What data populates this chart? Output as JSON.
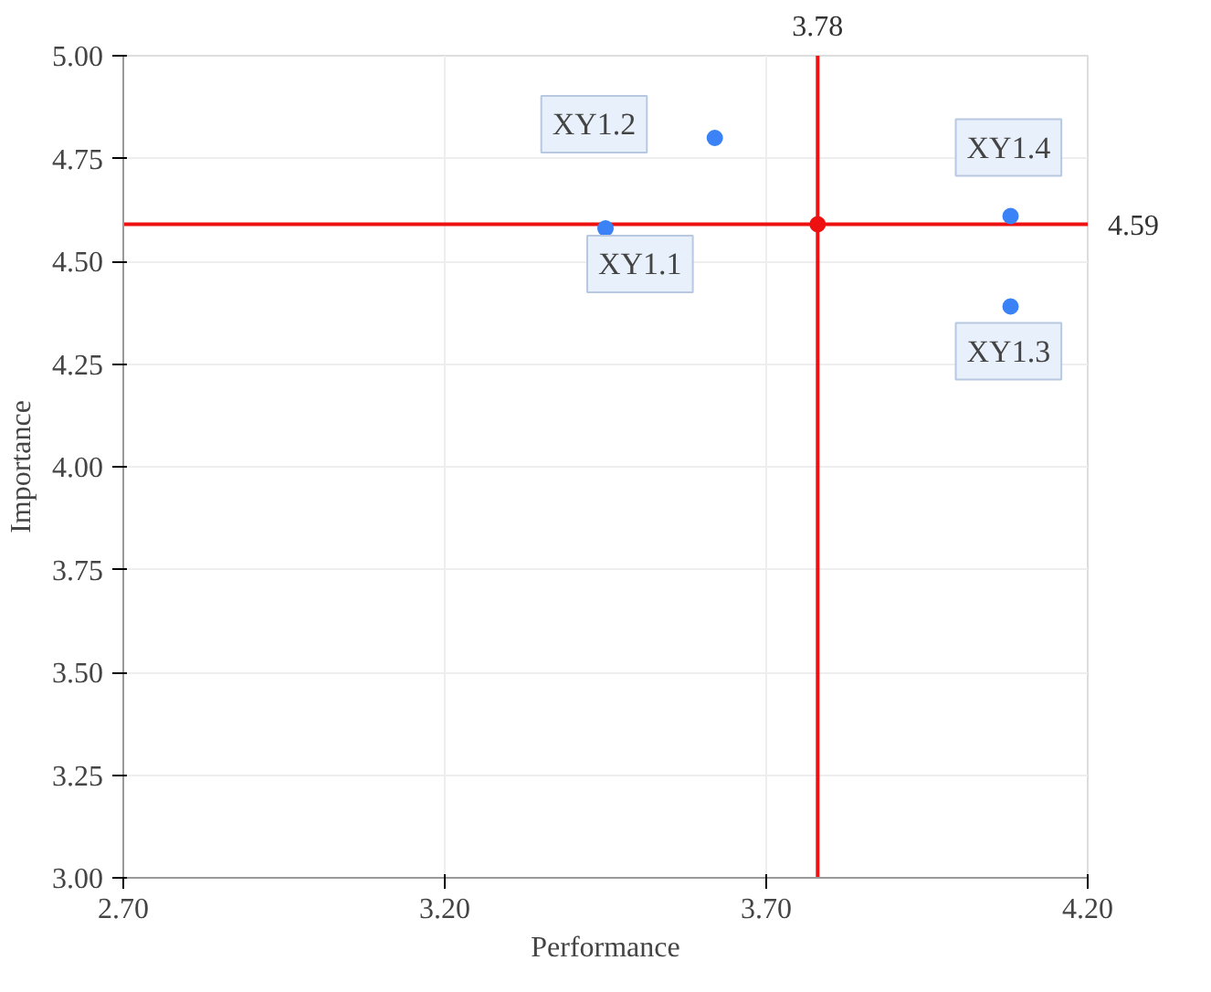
{
  "chart_data": {
    "type": "scatter",
    "xlabel": "Performance",
    "ylabel": "Importance",
    "xlim": [
      2.7,
      4.2
    ],
    "xticks": [
      {
        "value": 2.7,
        "label": "2.70"
      },
      {
        "value": 3.2,
        "label": "3.20"
      },
      {
        "value": 3.7,
        "label": "3.70"
      },
      {
        "value": 4.2,
        "label": "4.20"
      }
    ],
    "ylim": [
      3.0,
      5.0
    ],
    "yticks": [
      {
        "value": 3.0,
        "label": "3.00"
      },
      {
        "value": 3.25,
        "label": "3.25"
      },
      {
        "value": 3.5,
        "label": "3.50"
      },
      {
        "value": 3.75,
        "label": "3.75"
      },
      {
        "value": 4.0,
        "label": "4.00"
      },
      {
        "value": 4.25,
        "label": "4.25"
      },
      {
        "value": 4.5,
        "label": "4.50"
      },
      {
        "value": 4.75,
        "label": "4.75"
      },
      {
        "value": 5.0,
        "label": "5.00"
      }
    ],
    "grid": true,
    "marker": "circle",
    "series": [
      {
        "color": "#3b82f6",
        "x": [
          3.45,
          3.62,
          4.08,
          4.08
        ],
        "values": [
          4.58,
          4.8,
          4.39,
          4.61
        ]
      },
      {
        "color": "#ee1111",
        "x": [
          3.78
        ],
        "values": [
          4.59
        ]
      }
    ],
    "ref_lines": [
      {
        "axis": "x",
        "value": 3.78,
        "label": "3.78",
        "color": "#ee1111"
      },
      {
        "axis": "y",
        "value": 4.59,
        "label": "4.59",
        "color": "#ee1111"
      }
    ],
    "annotations": [
      {
        "text": "XY1.1",
        "x": 3.45,
        "y": 4.58
      },
      {
        "text": "XY1.2",
        "x": 3.62,
        "y": 4.8
      },
      {
        "text": "XY1.3",
        "x": 4.08,
        "y": 4.39
      },
      {
        "text": "XY1.4",
        "x": 4.08,
        "y": 4.61
      }
    ]
  }
}
